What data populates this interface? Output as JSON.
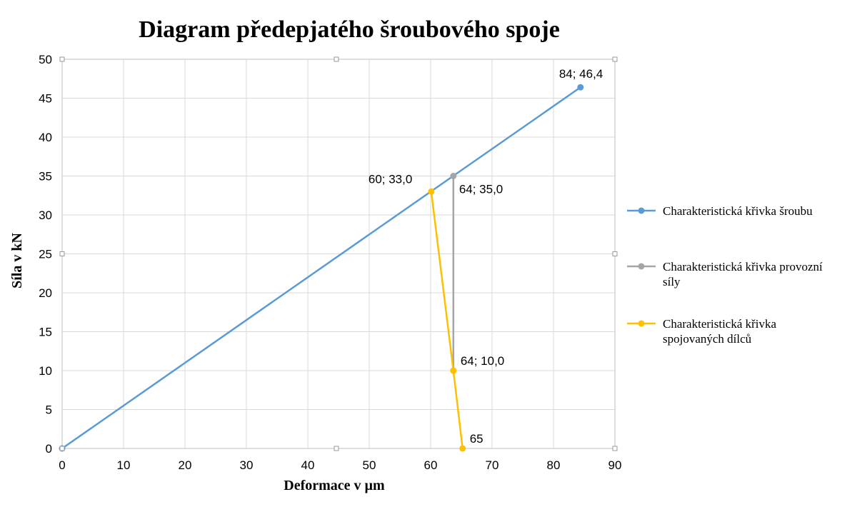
{
  "chart_data": {
    "type": "line",
    "title": "Diagram předepjatého šroubového spoje",
    "xlabel": "Deformace v  µm",
    "ylabel": "Síla v kN",
    "xlim": [
      0,
      90
    ],
    "ylim": [
      0,
      50
    ],
    "xticks": [
      0,
      10,
      20,
      30,
      40,
      50,
      60,
      70,
      80,
      90
    ],
    "yticks": [
      0,
      5,
      10,
      15,
      20,
      25,
      30,
      35,
      40,
      45,
      50
    ],
    "grid": true,
    "legend_position": "right",
    "series": [
      {
        "name": "Charakteristická křivka šroubu",
        "color": "#5b9bd5",
        "points": [
          [
            0,
            0
          ],
          [
            84.4,
            46.4
          ]
        ],
        "labels": [
          "",
          "84; 46,4"
        ]
      },
      {
        "name": "Charakteristická křivka provozní síly",
        "color": "#a5a5a5",
        "points": [
          [
            63.7,
            35.0
          ],
          [
            63.7,
            10.0
          ]
        ],
        "labels": [
          "64; 35,0",
          "64; 10,0"
        ]
      },
      {
        "name": "Charakteristická křivka spojovaných dílců",
        "color": "#ffc000",
        "points": [
          [
            60.1,
            33.0
          ],
          [
            63.7,
            10.0
          ],
          [
            65.2,
            0
          ]
        ],
        "labels": [
          "60; 33,0",
          "",
          "65"
        ]
      }
    ]
  }
}
